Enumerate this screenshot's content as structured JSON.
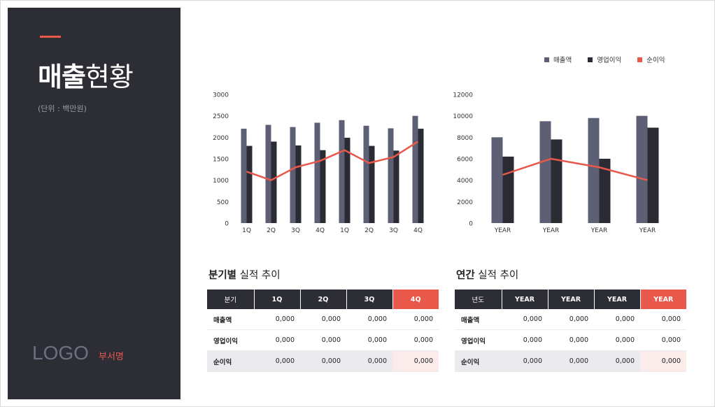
{
  "sidebar": {
    "title_bold": "매출",
    "title_light": "현황",
    "unit": "(단위 : 백만원)",
    "logo": "LOGO",
    "department": "부서명"
  },
  "legend": {
    "items": [
      {
        "label": "매출액",
        "color": "#5d5f75"
      },
      {
        "label": "영업이익",
        "color": "#2b2b34"
      },
      {
        "label": "순이익",
        "color": "#e8584b"
      }
    ]
  },
  "colors": {
    "sales": "#5d5f75",
    "operating": "#2b2b34",
    "net": "#e8584b",
    "sidebar": "#2d2d36"
  },
  "chart_data": [
    {
      "type": "bar",
      "categories": [
        "1Q",
        "2Q",
        "3Q",
        "4Q",
        "1Q",
        "2Q",
        "3Q",
        "4Q"
      ],
      "ylim": [
        0,
        3000
      ],
      "yticks": [
        0,
        500,
        1000,
        1500,
        2000,
        2500,
        3000
      ],
      "series": [
        {
          "name": "매출액",
          "kind": "bar",
          "values": [
            2200,
            2290,
            2240,
            2340,
            2400,
            2270,
            2210,
            2500
          ]
        },
        {
          "name": "영업이익",
          "kind": "bar",
          "values": [
            1800,
            1900,
            1810,
            1700,
            1990,
            1800,
            1690,
            2200
          ]
        },
        {
          "name": "순이익",
          "kind": "line",
          "values": [
            1200,
            1000,
            1300,
            1450,
            1700,
            1400,
            1540,
            1900
          ]
        }
      ]
    },
    {
      "type": "bar",
      "categories": [
        "YEAR",
        "YEAR",
        "YEAR",
        "YEAR"
      ],
      "ylim": [
        0,
        12000
      ],
      "yticks": [
        0,
        2000,
        4000,
        6000,
        8000,
        10000,
        12000
      ],
      "series": [
        {
          "name": "매출액",
          "kind": "bar",
          "values": [
            8000,
            9500,
            9800,
            10000
          ]
        },
        {
          "name": "영업이익",
          "kind": "bar",
          "values": [
            6200,
            7800,
            6000,
            8900
          ]
        },
        {
          "name": "순이익",
          "kind": "line",
          "values": [
            4500,
            6000,
            5200,
            4000
          ]
        }
      ]
    }
  ],
  "quarterly": {
    "title_bold": "분기별",
    "title_rest": " 실적 추이",
    "headers": [
      "분기",
      "1Q",
      "2Q",
      "3Q",
      "4Q"
    ],
    "rows": [
      {
        "label": "매출액",
        "values": [
          "0,000",
          "0,000",
          "0,000",
          "0,000"
        ]
      },
      {
        "label": "영업이익",
        "values": [
          "0,000",
          "0,000",
          "0,000",
          "0,000"
        ]
      },
      {
        "label": "순이익",
        "values": [
          "0,000",
          "0,000",
          "0,000",
          "0,000"
        ]
      }
    ]
  },
  "annual": {
    "title_bold": "연간",
    "title_rest": " 실적 추이",
    "headers": [
      "년도",
      "YEAR",
      "YEAR",
      "YEAR",
      "YEAR"
    ],
    "rows": [
      {
        "label": "매출액",
        "values": [
          "0,000",
          "0,000",
          "0,000",
          "0,000"
        ]
      },
      {
        "label": "영업이익",
        "values": [
          "0,000",
          "0,000",
          "0,000",
          "0,000"
        ]
      },
      {
        "label": "순이익",
        "values": [
          "0,000",
          "0,000",
          "0,000",
          "0,000"
        ]
      }
    ]
  }
}
